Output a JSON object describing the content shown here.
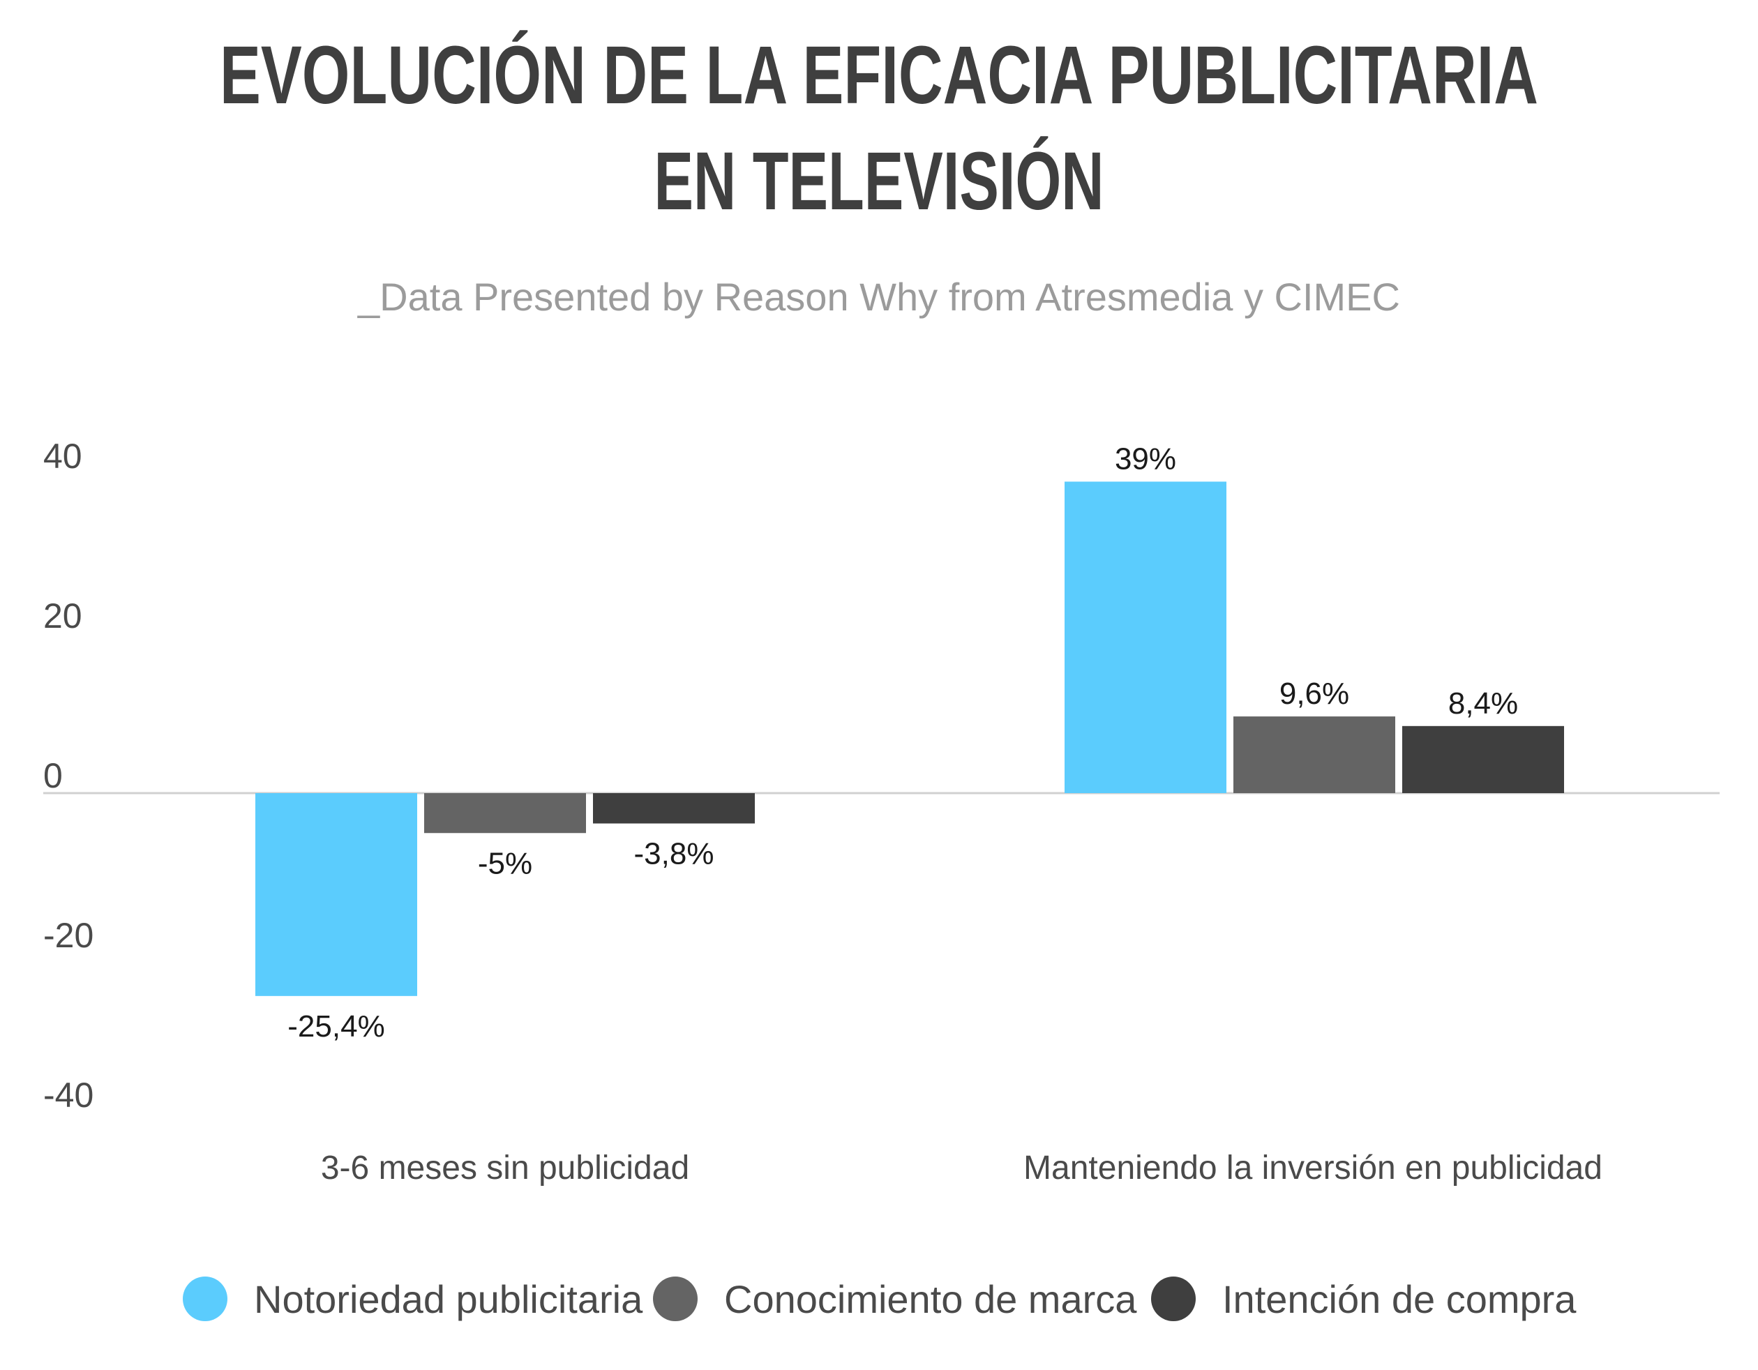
{
  "chart_data": {
    "type": "bar",
    "title_lines": [
      "EVOLUCIÓN DE LA EFICACIA PUBLICITARIA",
      "EN TELEVISIÓN"
    ],
    "subtitle": "_Data Presented by Reason Why from Atresmedia y CIMEC",
    "categories": [
      "3-6 meses sin publicidad",
      "Manteniendo la inversión en publicidad"
    ],
    "series": [
      {
        "name": "Notoriedad publicitaria",
        "color": "#5bccfd",
        "values": [
          -25.4,
          39
        ],
        "labels": [
          "-25,4%",
          "39%"
        ]
      },
      {
        "name": "Conocimiento de marca",
        "color": "#646464",
        "values": [
          -5,
          9.6
        ],
        "labels": [
          "-5%",
          "9,6%"
        ]
      },
      {
        "name": "Intención de compra",
        "color": "#3f3f3f",
        "values": [
          -3.8,
          8.4
        ],
        "labels": [
          "-3,8%",
          "8,4%"
        ]
      }
    ],
    "y_ticks": [
      40,
      20,
      0,
      -20,
      -40
    ],
    "ylim": [
      -40,
      40
    ],
    "grid": false,
    "legend_position": "bottom"
  }
}
